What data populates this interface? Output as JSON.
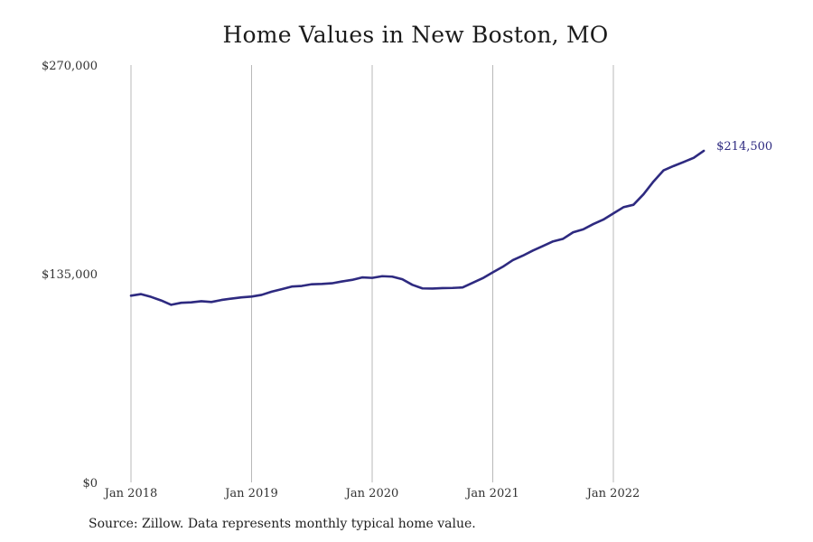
{
  "chart_data": {
    "type": "line",
    "title": "Home Values in New Boston, MO",
    "xlabel": "",
    "ylabel": "",
    "ylim": [
      0,
      270000
    ],
    "y_ticks": [
      {
        "value": 0,
        "label": "$0"
      },
      {
        "value": 135000,
        "label": "$135,000"
      },
      {
        "value": 270000,
        "label": "$270,000"
      }
    ],
    "x_ticks": [
      "Jan 2018",
      "Jan 2019",
      "Jan 2020",
      "Jan 2021",
      "Jan 2022"
    ],
    "grid": "vertical",
    "legend": "none",
    "series": [
      {
        "color": "#2e2a80",
        "x": [
          "2018-01",
          "2018-02",
          "2018-03",
          "2018-04",
          "2018-05",
          "2018-06",
          "2018-07",
          "2018-08",
          "2018-09",
          "2018-10",
          "2018-11",
          "2018-12",
          "2019-01",
          "2019-02",
          "2019-03",
          "2019-04",
          "2019-05",
          "2019-06",
          "2019-07",
          "2019-08",
          "2019-09",
          "2019-10",
          "2019-11",
          "2019-12",
          "2020-01",
          "2020-02",
          "2020-03",
          "2020-04",
          "2020-05",
          "2020-06",
          "2020-07",
          "2020-08",
          "2020-09",
          "2020-10",
          "2020-11",
          "2020-12",
          "2021-01",
          "2021-02",
          "2021-03",
          "2021-04",
          "2021-05",
          "2021-06",
          "2021-07",
          "2021-08",
          "2021-09",
          "2021-10",
          "2021-11",
          "2021-12",
          "2022-01",
          "2022-02",
          "2022-03",
          "2022-04",
          "2022-05",
          "2022-06",
          "2022-07",
          "2022-08",
          "2022-09",
          "2022-10"
        ],
        "values": [
          120800,
          121800,
          120000,
          117700,
          114900,
          116200,
          116500,
          117200,
          116700,
          118000,
          118900,
          119700,
          120200,
          121300,
          123400,
          125000,
          126700,
          127100,
          128200,
          128400,
          128800,
          130000,
          131000,
          132600,
          132300,
          133400,
          133100,
          131400,
          127800,
          125500,
          125400,
          125700,
          125800,
          126100,
          129100,
          132100,
          135900,
          139500,
          143800,
          146700,
          150000,
          152900,
          155900,
          157600,
          161800,
          163700,
          167100,
          170000,
          174000,
          178000,
          179600,
          186400,
          194700,
          201900,
          204700,
          207300,
          210000,
          214500
        ]
      }
    ],
    "end_label": "$214,500",
    "note": "Source: Zillow. Data represents monthly typical home value."
  }
}
